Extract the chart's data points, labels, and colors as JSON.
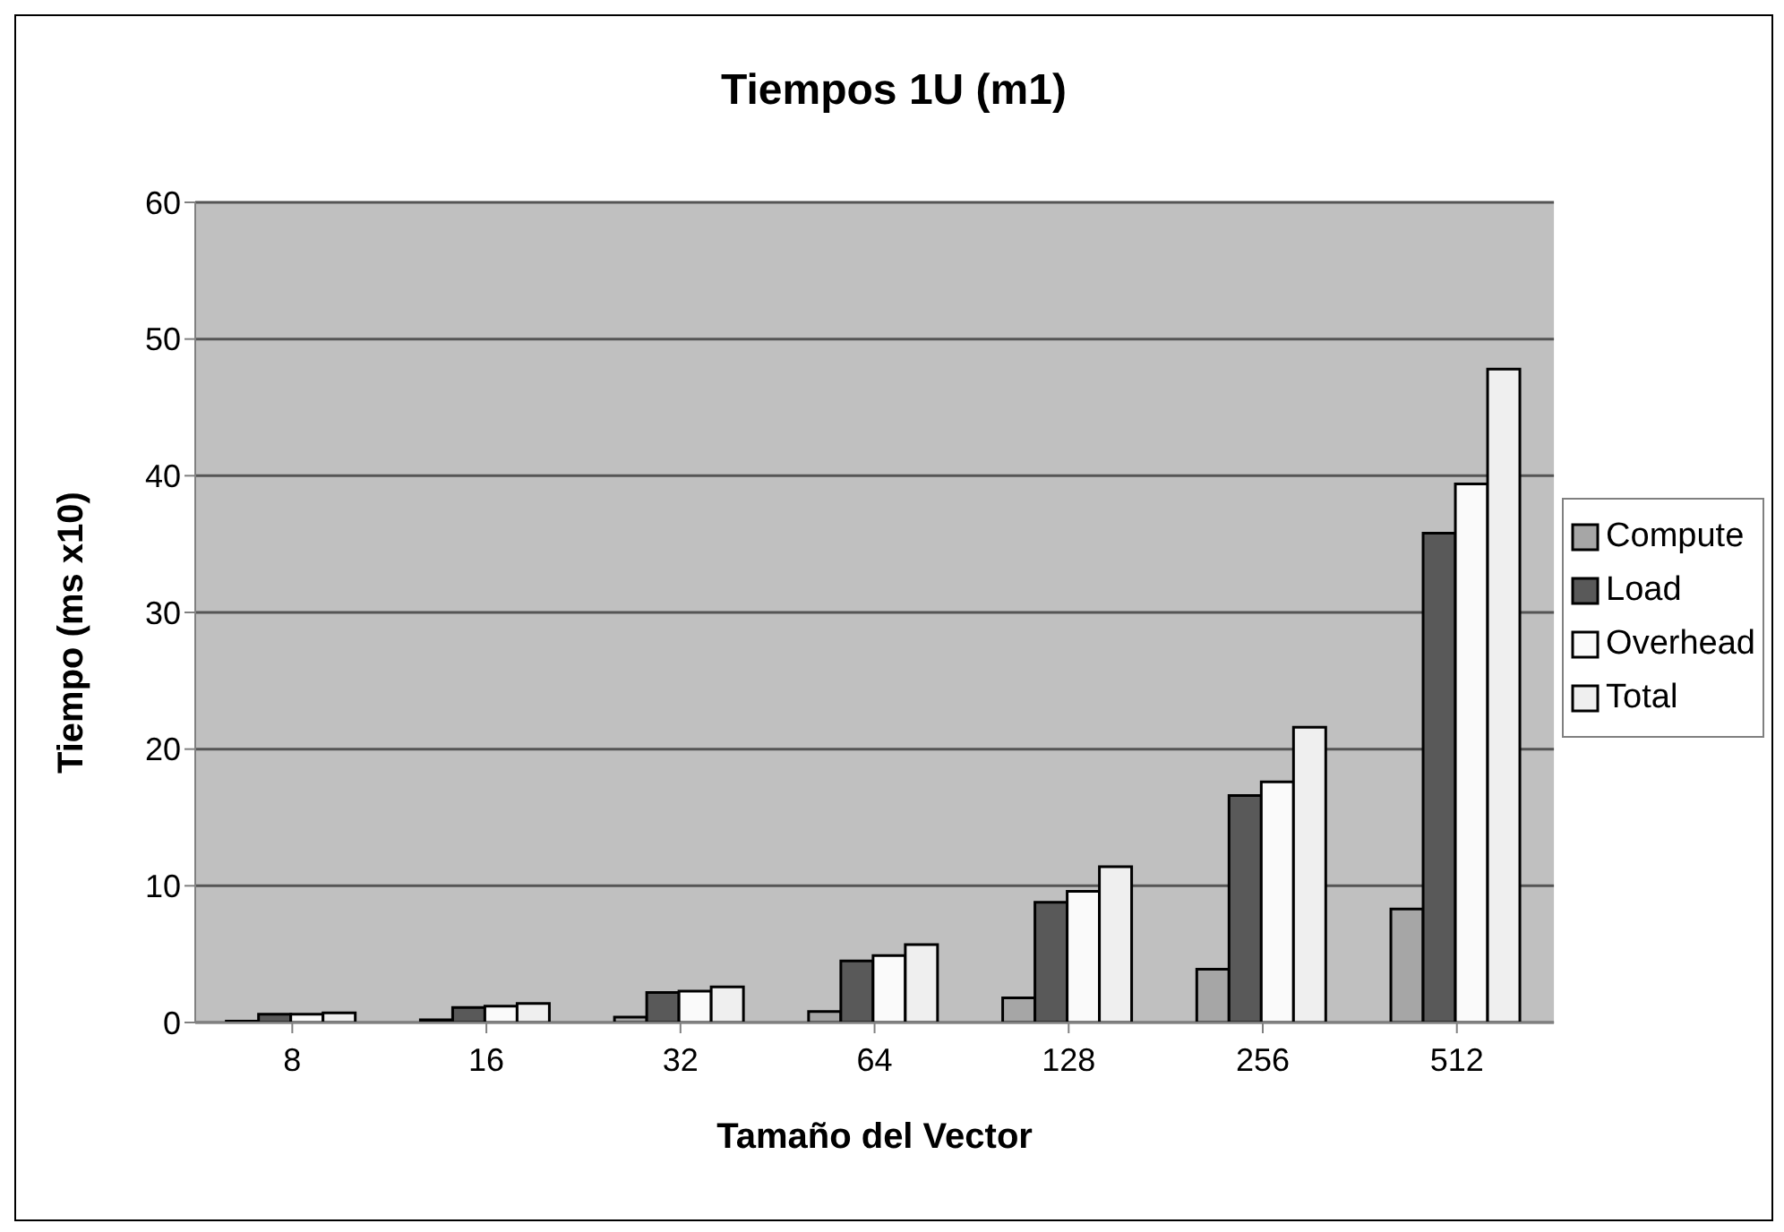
{
  "chart_data": {
    "type": "bar",
    "title": "Tiempos 1U (m1)",
    "xlabel": "Tamaño del Vector",
    "ylabel": "Tiempo (ms x10)",
    "categories": [
      "8",
      "16",
      "32",
      "64",
      "128",
      "256",
      "512"
    ],
    "series": [
      {
        "name": "Compute",
        "color": "#a6a6a6",
        "values": [
          0.1,
          0.2,
          0.4,
          0.8,
          1.8,
          3.9,
          8.3
        ]
      },
      {
        "name": "Load",
        "color": "#595959",
        "values": [
          0.6,
          1.1,
          2.2,
          4.5,
          8.8,
          16.6,
          35.8
        ]
      },
      {
        "name": "Overhead",
        "color": "#fafafa",
        "values": [
          0.6,
          1.2,
          2.3,
          4.9,
          9.6,
          17.6,
          39.4
        ]
      },
      {
        "name": "Total",
        "color": "#efefef",
        "values": [
          0.7,
          1.4,
          2.6,
          5.7,
          11.4,
          21.6,
          47.8
        ]
      }
    ],
    "ylim": [
      0,
      60
    ],
    "yticks": [
      0,
      10,
      20,
      30,
      40,
      50,
      60
    ],
    "grid": "y",
    "legend": "right"
  }
}
